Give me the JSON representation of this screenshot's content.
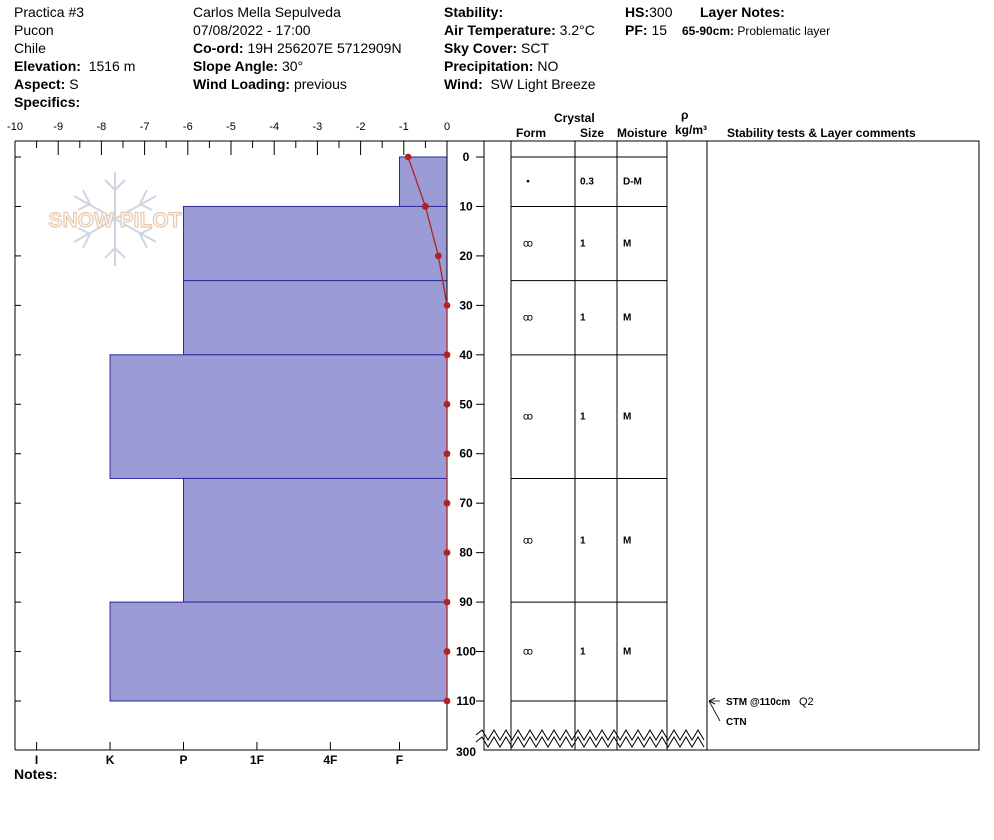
{
  "header": {
    "col1": [
      "Practica #3",
      "Pucon",
      "Chile"
    ],
    "elevation_label": "Elevation:",
    "elevation_value": "1516 m",
    "aspect_label": "Aspect:",
    "aspect_value": "S",
    "specifics_label": "Specifics:",
    "observer": "Carlos Mella Sepulveda",
    "datetime": "07/08/2022 - 17:00",
    "coord_label": "Co-ord:",
    "coord_value": "19H 256207E 5712909N",
    "slope_label": "Slope Angle:",
    "slope_value": "30°",
    "wind_loading_label": "Wind Loading:",
    "wind_loading_value": "previous",
    "stability_label": "Stability:",
    "air_temp_label": "Air Temperature:",
    "air_temp_value": "3.2°C",
    "sky_label": "Sky Cover:",
    "sky_value": "SCT",
    "precip_label": "Precipitation:",
    "precip_value": "NO",
    "wind_label": "Wind:",
    "wind_value": "SW Light Breeze",
    "hs_label": "HS:",
    "hs_value": "300",
    "pf_label": "PF:",
    "pf_value": "15",
    "layer_notes_label": "Layer Notes:",
    "layer_note_range": "65-90cm:",
    "layer_note_text": "Problematic layer"
  },
  "watermark": "SNOW PILOT",
  "table_headers": {
    "crystal": "Crystal",
    "form": "Form",
    "size": "Size",
    "moisture": "Moisture",
    "rho": "ρ",
    "density_unit": "kg/m³",
    "comments": "Stability tests & Layer comments"
  },
  "notes_label": "Notes:",
  "colors": {
    "layer_fill": "#9b9bd6",
    "layer_stroke": "#2a2a9a",
    "temp_line": "#b22222"
  },
  "chart_data": {
    "type": "snow_profile",
    "temperature_axis": {
      "ticks": [
        -10,
        -9,
        -8,
        -7,
        -6,
        -5,
        -4,
        -3,
        -2,
        -1,
        0
      ],
      "range": [
        -10,
        0
      ],
      "label": ""
    },
    "depth_axis": {
      "ticks": [
        0,
        10,
        20,
        30,
        40,
        50,
        60,
        70,
        80,
        90,
        100,
        110
      ],
      "bottom_label": "300",
      "range_cm": [
        0,
        110
      ]
    },
    "hardness_axis": {
      "labels": [
        "I",
        "K",
        "P",
        "1F",
        "4F",
        "F"
      ],
      "scale_values": [
        -9.5,
        -7.8,
        -6.1,
        -4.4,
        -2.7,
        -1.1
      ]
    },
    "temperature_profile": [
      {
        "depth": 0,
        "temp": -0.9
      },
      {
        "depth": 10,
        "temp": -0.5
      },
      {
        "depth": 20,
        "temp": -0.2
      },
      {
        "depth": 30,
        "temp": 0
      },
      {
        "depth": 40,
        "temp": 0
      },
      {
        "depth": 50,
        "temp": 0
      },
      {
        "depth": 60,
        "temp": 0
      },
      {
        "depth": 70,
        "temp": 0
      },
      {
        "depth": 80,
        "temp": 0
      },
      {
        "depth": 90,
        "temp": 0
      },
      {
        "depth": 100,
        "temp": 0
      },
      {
        "depth": 110,
        "temp": 0
      }
    ],
    "layers": [
      {
        "top": 0,
        "bottom": 10,
        "hardness_value": -1.1,
        "form_symbol": "•",
        "size": "0.3",
        "moisture": "D-M"
      },
      {
        "top": 10,
        "bottom": 25,
        "hardness_value": -6.1,
        "form_symbol": "ꝏ",
        "size": "1",
        "moisture": "M"
      },
      {
        "top": 25,
        "bottom": 40,
        "hardness_value": -6.1,
        "form_symbol": "ꝏ",
        "size": "1",
        "moisture": "M"
      },
      {
        "top": 40,
        "bottom": 65,
        "hardness_value": -7.8,
        "form_symbol": "ꝏ",
        "size": "1",
        "moisture": "M"
      },
      {
        "top": 65,
        "bottom": 90,
        "hardness_value": -6.1,
        "form_symbol": "ꝏ",
        "size": "1",
        "moisture": "M"
      },
      {
        "top": 90,
        "bottom": 110,
        "hardness_value": -7.8,
        "form_symbol": "ꝏ",
        "size": "1",
        "moisture": "M"
      }
    ],
    "stability_tests": [
      {
        "depth": 110,
        "text": "STM @110cm",
        "quality": "Q2"
      },
      {
        "depth": 110,
        "text": "CTN",
        "quality": ""
      }
    ]
  }
}
